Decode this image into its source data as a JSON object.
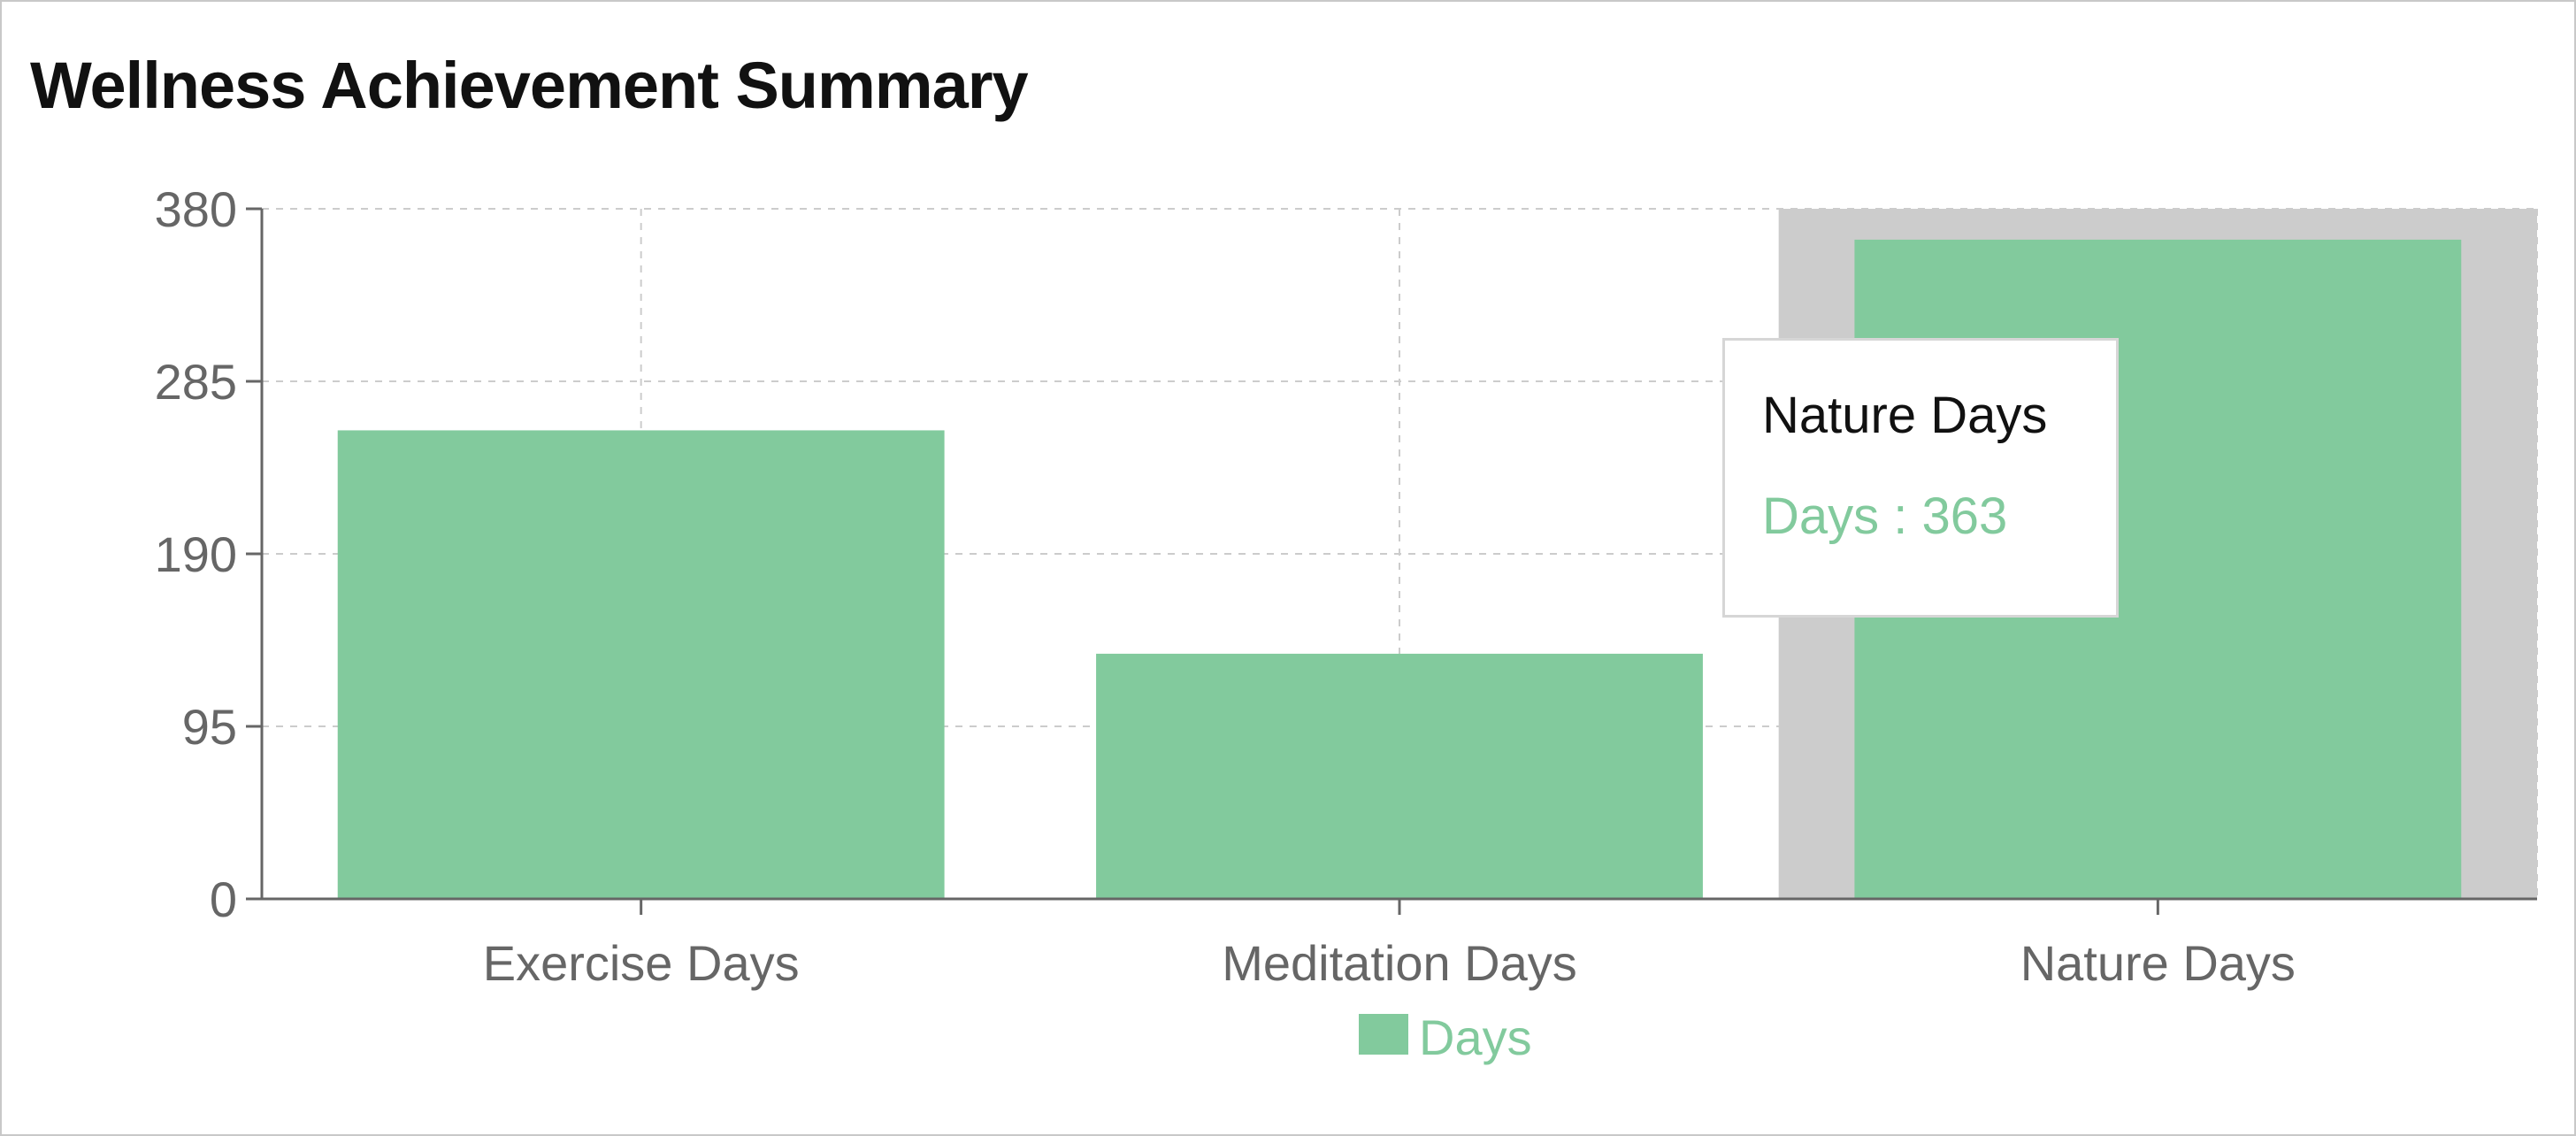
{
  "chart_data": {
    "type": "bar",
    "title": "Wellness Achievement Summary",
    "categories": [
      "Exercise Days",
      "Meditation Days",
      "Nature Days"
    ],
    "series": [
      {
        "name": "Days",
        "values": [
          258,
          135,
          363
        ],
        "color": "#82ca9d"
      }
    ],
    "yticks": [
      0,
      95,
      190,
      285,
      380
    ],
    "ylim": [
      0,
      380
    ],
    "grid": true,
    "legend": "bottom-center",
    "highlight_category": "Nature Days",
    "tooltip": {
      "title": "Nature Days",
      "label": "Days : 363"
    }
  },
  "colors": {
    "bar": "#82ca9d",
    "grid": "#cccccc",
    "axis": "#666666",
    "highlight": "#cccccc",
    "tick_text": "#666666"
  }
}
